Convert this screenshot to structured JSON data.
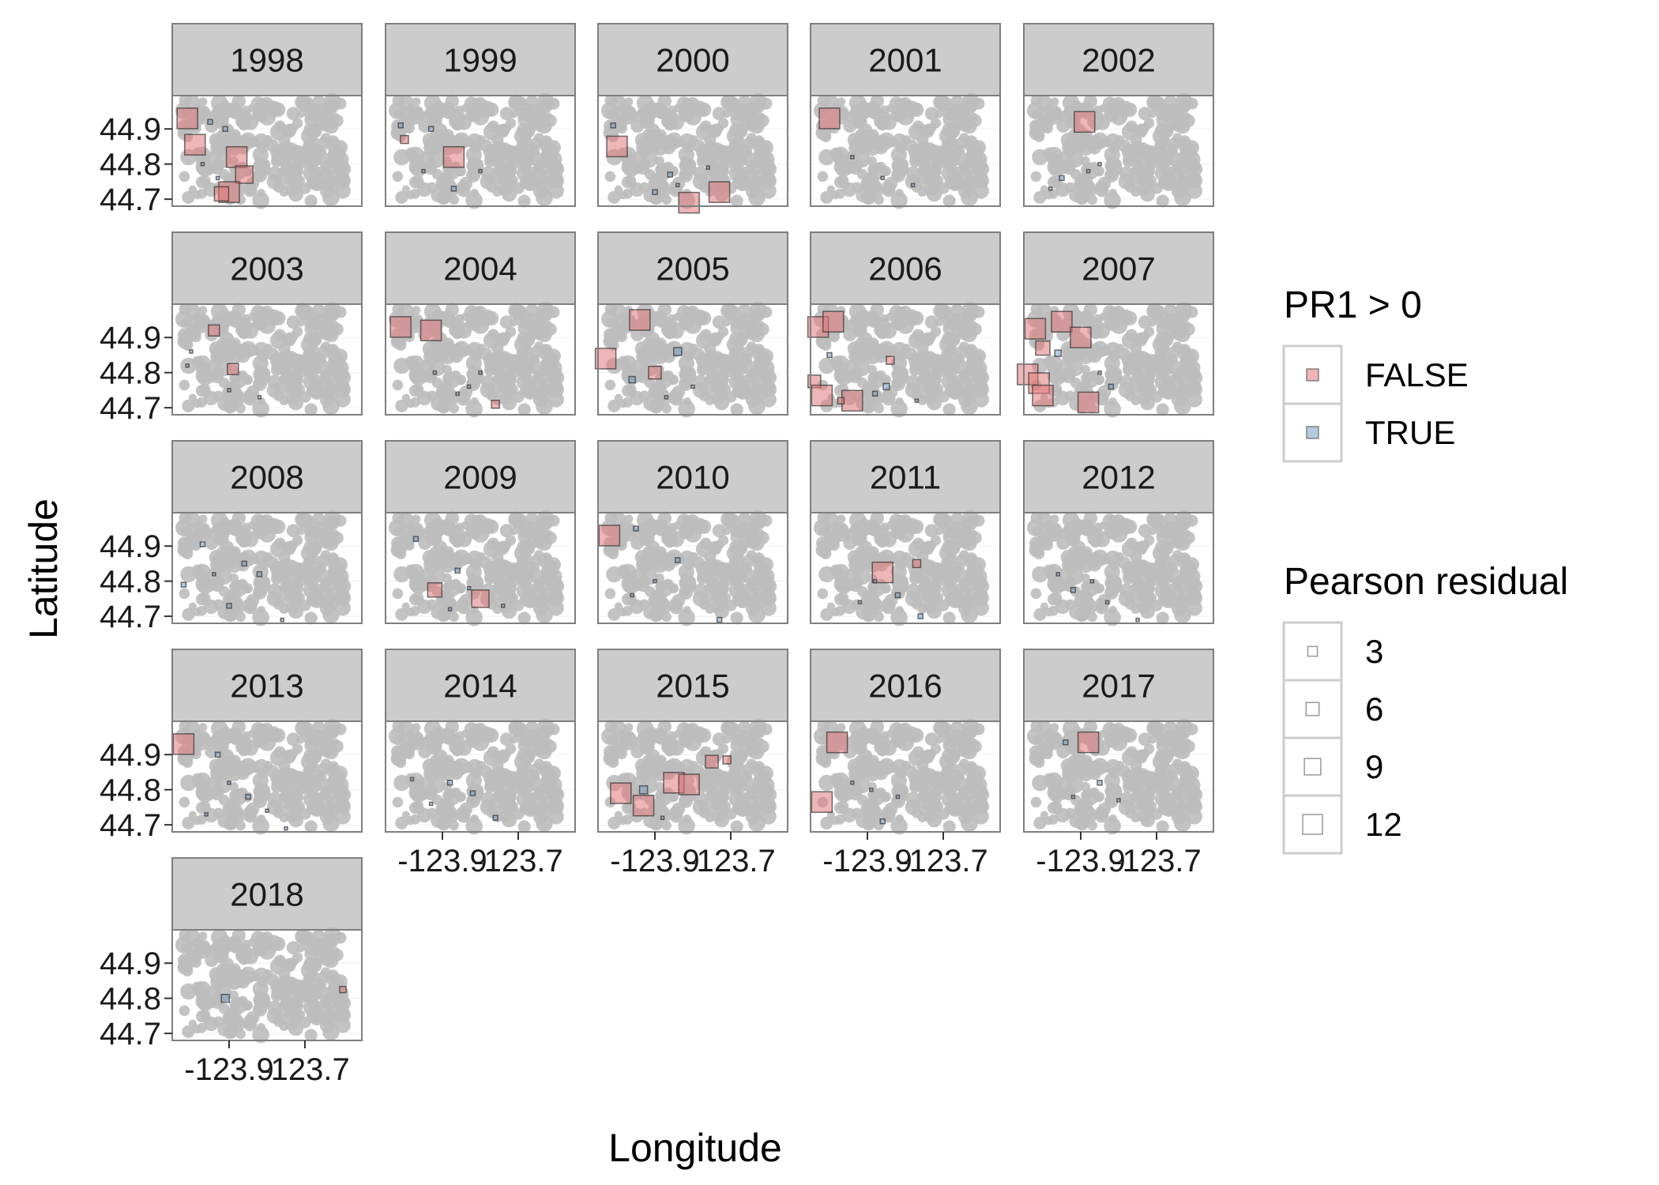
{
  "chart_data": {
    "type": "scatter",
    "facet_variable": "year",
    "facets": [
      "1998",
      "1999",
      "2000",
      "2001",
      "2002",
      "2003",
      "2004",
      "2005",
      "2006",
      "2007",
      "2008",
      "2009",
      "2010",
      "2011",
      "2012",
      "2013",
      "2014",
      "2015",
      "2016",
      "2017",
      "2018"
    ],
    "ncol": 5,
    "xlabel": "Longitude",
    "ylabel": "Latitude",
    "x_ticks": [
      -123.9,
      -123.7
    ],
    "x_tick_labels": [
      "-123.9",
      "-123.7"
    ],
    "y_ticks": [
      44.7,
      44.8,
      44.9
    ],
    "y_tick_labels": [
      "44.7",
      "44.8",
      "44.9"
    ],
    "xlim": [
      -124.05,
      -123.55
    ],
    "ylim": [
      44.68,
      44.995
    ],
    "grid": true,
    "background_points_color": "#bdbdbd",
    "legends": {
      "fill": {
        "title": "PR1 > 0",
        "entries": [
          {
            "label": "FALSE",
            "color": "#e07a7a"
          },
          {
            "label": "TRUE",
            "color": "#7a9fc4"
          }
        ]
      },
      "size": {
        "title": "Pearson residual",
        "entries": [
          {
            "label": "3",
            "value": 3
          },
          {
            "label": "6",
            "value": 6
          },
          {
            "label": "9",
            "value": 9
          },
          {
            "label": "12",
            "value": 12
          }
        ]
      },
      "placement": "right"
    },
    "points": {
      "1998": [
        {
          "x": -124.01,
          "y": 44.93,
          "r": 13,
          "pos": false
        },
        {
          "x": -123.99,
          "y": 44.855,
          "r": 13,
          "pos": false
        },
        {
          "x": -123.88,
          "y": 44.82,
          "r": 13,
          "pos": false
        },
        {
          "x": -123.86,
          "y": 44.77,
          "r": 11,
          "pos": false
        },
        {
          "x": -123.9,
          "y": 44.72,
          "r": 13,
          "pos": false
        },
        {
          "x": -123.92,
          "y": 44.715,
          "r": 9,
          "pos": false
        },
        {
          "x": -123.95,
          "y": 44.92,
          "r": 3,
          "pos": true
        },
        {
          "x": -123.91,
          "y": 44.9,
          "r": 3,
          "pos": true
        },
        {
          "x": -123.97,
          "y": 44.8,
          "r": 2,
          "pos": true
        },
        {
          "x": -123.93,
          "y": 44.76,
          "r": 2,
          "pos": true
        }
      ],
      "1999": [
        {
          "x": -123.87,
          "y": 44.82,
          "r": 13,
          "pos": false
        },
        {
          "x": -124.0,
          "y": 44.87,
          "r": 5,
          "pos": false
        },
        {
          "x": -124.01,
          "y": 44.91,
          "r": 3,
          "pos": true
        },
        {
          "x": -123.93,
          "y": 44.9,
          "r": 3,
          "pos": true
        },
        {
          "x": -123.95,
          "y": 44.78,
          "r": 2,
          "pos": true
        },
        {
          "x": -123.87,
          "y": 44.73,
          "r": 3,
          "pos": true
        },
        {
          "x": -123.8,
          "y": 44.78,
          "r": 2,
          "pos": true
        }
      ],
      "2000": [
        {
          "x": -124.0,
          "y": 44.85,
          "r": 13,
          "pos": false
        },
        {
          "x": -123.81,
          "y": 44.69,
          "r": 13,
          "pos": false
        },
        {
          "x": -123.73,
          "y": 44.72,
          "r": 13,
          "pos": false
        },
        {
          "x": -124.01,
          "y": 44.91,
          "r": 3,
          "pos": true
        },
        {
          "x": -123.86,
          "y": 44.77,
          "r": 3,
          "pos": true
        },
        {
          "x": -123.9,
          "y": 44.72,
          "r": 3,
          "pos": true
        },
        {
          "x": -123.84,
          "y": 44.74,
          "r": 2,
          "pos": true
        },
        {
          "x": -123.76,
          "y": 44.79,
          "r": 2,
          "pos": true
        }
      ],
      "2001": [
        {
          "x": -124.0,
          "y": 44.93,
          "r": 13,
          "pos": false
        },
        {
          "x": -123.94,
          "y": 44.82,
          "r": 2,
          "pos": true
        },
        {
          "x": -123.86,
          "y": 44.76,
          "r": 2,
          "pos": true
        },
        {
          "x": -123.78,
          "y": 44.74,
          "r": 2,
          "pos": true
        }
      ],
      "2002": [
        {
          "x": -123.89,
          "y": 44.92,
          "r": 13,
          "pos": false
        },
        {
          "x": -123.95,
          "y": 44.76,
          "r": 3,
          "pos": true
        },
        {
          "x": -123.88,
          "y": 44.78,
          "r": 2,
          "pos": true
        },
        {
          "x": -123.85,
          "y": 44.8,
          "r": 2,
          "pos": true
        },
        {
          "x": -123.98,
          "y": 44.73,
          "r": 2,
          "pos": true
        }
      ],
      "2003": [
        {
          "x": -123.94,
          "y": 44.92,
          "r": 7,
          "pos": false
        },
        {
          "x": -123.89,
          "y": 44.81,
          "r": 7,
          "pos": false
        },
        {
          "x": -124.01,
          "y": 44.82,
          "r": 2,
          "pos": true
        },
        {
          "x": -124.0,
          "y": 44.86,
          "r": 2,
          "pos": true
        },
        {
          "x": -123.9,
          "y": 44.75,
          "r": 2,
          "pos": true
        },
        {
          "x": -123.82,
          "y": 44.73,
          "r": 2,
          "pos": true
        }
      ],
      "2004": [
        {
          "x": -124.01,
          "y": 44.93,
          "r": 13,
          "pos": false
        },
        {
          "x": -123.93,
          "y": 44.92,
          "r": 13,
          "pos": false
        },
        {
          "x": -123.76,
          "y": 44.71,
          "r": 5,
          "pos": false
        },
        {
          "x": -123.83,
          "y": 44.76,
          "r": 2,
          "pos": true
        },
        {
          "x": -123.8,
          "y": 44.8,
          "r": 2,
          "pos": true
        },
        {
          "x": -123.86,
          "y": 44.74,
          "r": 2,
          "pos": true
        },
        {
          "x": -123.92,
          "y": 44.8,
          "r": 2,
          "pos": true
        }
      ],
      "2005": [
        {
          "x": -124.03,
          "y": 44.84,
          "r": 13,
          "pos": false
        },
        {
          "x": -123.94,
          "y": 44.95,
          "r": 13,
          "pos": false
        },
        {
          "x": -123.9,
          "y": 44.8,
          "r": 8,
          "pos": false
        },
        {
          "x": -123.84,
          "y": 44.86,
          "r": 5,
          "pos": true
        },
        {
          "x": -123.96,
          "y": 44.78,
          "r": 4,
          "pos": true
        },
        {
          "x": -123.8,
          "y": 44.76,
          "r": 2,
          "pos": true
        },
        {
          "x": -123.87,
          "y": 44.73,
          "r": 2,
          "pos": true
        }
      ],
      "2006": [
        {
          "x": -124.03,
          "y": 44.93,
          "r": 13,
          "pos": false
        },
        {
          "x": -123.99,
          "y": 44.945,
          "r": 13,
          "pos": false
        },
        {
          "x": -124.04,
          "y": 44.775,
          "r": 8,
          "pos": false
        },
        {
          "x": -124.02,
          "y": 44.735,
          "r": 13,
          "pos": false
        },
        {
          "x": -123.94,
          "y": 44.72,
          "r": 13,
          "pos": false
        },
        {
          "x": -123.84,
          "y": 44.835,
          "r": 5,
          "pos": false
        },
        {
          "x": -123.97,
          "y": 44.72,
          "r": 4,
          "pos": false
        },
        {
          "x": -123.85,
          "y": 44.76,
          "r": 4,
          "pos": true
        },
        {
          "x": -123.88,
          "y": 44.74,
          "r": 3,
          "pos": true
        },
        {
          "x": -124.0,
          "y": 44.85,
          "r": 3,
          "pos": true
        },
        {
          "x": -123.77,
          "y": 44.72,
          "r": 2,
          "pos": true
        }
      ],
      "2007": [
        {
          "x": -124.02,
          "y": 44.925,
          "r": 13,
          "pos": false
        },
        {
          "x": -123.95,
          "y": 44.945,
          "r": 13,
          "pos": false
        },
        {
          "x": -123.9,
          "y": 44.9,
          "r": 13,
          "pos": false
        },
        {
          "x": -124.0,
          "y": 44.87,
          "r": 9,
          "pos": false
        },
        {
          "x": -124.04,
          "y": 44.795,
          "r": 13,
          "pos": false
        },
        {
          "x": -124.01,
          "y": 44.77,
          "r": 13,
          "pos": false
        },
        {
          "x": -124.0,
          "y": 44.735,
          "r": 13,
          "pos": false
        },
        {
          "x": -123.88,
          "y": 44.715,
          "r": 13,
          "pos": false
        },
        {
          "x": -123.96,
          "y": 44.855,
          "r": 4,
          "pos": true
        },
        {
          "x": -123.82,
          "y": 44.76,
          "r": 3,
          "pos": true
        },
        {
          "x": -123.85,
          "y": 44.8,
          "r": 2,
          "pos": true
        }
      ],
      "2008": [
        {
          "x": -123.97,
          "y": 44.905,
          "r": 3,
          "pos": true
        },
        {
          "x": -124.02,
          "y": 44.79,
          "r": 3,
          "pos": true
        },
        {
          "x": -123.86,
          "y": 44.85,
          "r": 3,
          "pos": true
        },
        {
          "x": -123.82,
          "y": 44.82,
          "r": 3,
          "pos": true
        },
        {
          "x": -123.9,
          "y": 44.73,
          "r": 3,
          "pos": true
        },
        {
          "x": -123.94,
          "y": 44.82,
          "r": 2,
          "pos": true
        },
        {
          "x": -123.76,
          "y": 44.69,
          "r": 2,
          "pos": true
        }
      ],
      "2009": [
        {
          "x": -123.92,
          "y": 44.775,
          "r": 9,
          "pos": false
        },
        {
          "x": -123.8,
          "y": 44.75,
          "r": 11,
          "pos": false
        },
        {
          "x": -123.97,
          "y": 44.92,
          "r": 3,
          "pos": true
        },
        {
          "x": -123.86,
          "y": 44.83,
          "r": 3,
          "pos": true
        },
        {
          "x": -123.83,
          "y": 44.78,
          "r": 2,
          "pos": true
        },
        {
          "x": -123.88,
          "y": 44.72,
          "r": 2,
          "pos": true
        },
        {
          "x": -123.74,
          "y": 44.73,
          "r": 2,
          "pos": true
        }
      ],
      "2010": [
        {
          "x": -124.02,
          "y": 44.93,
          "r": 13,
          "pos": false
        },
        {
          "x": -123.95,
          "y": 44.95,
          "r": 3,
          "pos": true
        },
        {
          "x": -123.84,
          "y": 44.86,
          "r": 3,
          "pos": true
        },
        {
          "x": -123.9,
          "y": 44.8,
          "r": 2,
          "pos": true
        },
        {
          "x": -123.96,
          "y": 44.76,
          "r": 2,
          "pos": true
        },
        {
          "x": -123.73,
          "y": 44.69,
          "r": 3,
          "pos": true
        }
      ],
      "2011": [
        {
          "x": -123.86,
          "y": 44.825,
          "r": 13,
          "pos": false
        },
        {
          "x": -123.77,
          "y": 44.85,
          "r": 5,
          "pos": false
        },
        {
          "x": -123.82,
          "y": 44.76,
          "r": 3,
          "pos": true
        },
        {
          "x": -123.88,
          "y": 44.8,
          "r": 2,
          "pos": true
        },
        {
          "x": -123.92,
          "y": 44.74,
          "r": 2,
          "pos": true
        },
        {
          "x": -123.76,
          "y": 44.7,
          "r": 3,
          "pos": true
        }
      ],
      "2012": [
        {
          "x": -123.92,
          "y": 44.775,
          "r": 3,
          "pos": true
        },
        {
          "x": -123.87,
          "y": 44.8,
          "r": 2,
          "pos": true
        },
        {
          "x": -123.83,
          "y": 44.74,
          "r": 2,
          "pos": true
        },
        {
          "x": -123.96,
          "y": 44.82,
          "r": 2,
          "pos": true
        },
        {
          "x": -123.75,
          "y": 44.69,
          "r": 2,
          "pos": true
        }
      ],
      "2013": [
        {
          "x": -124.02,
          "y": 44.93,
          "r": 13,
          "pos": false
        },
        {
          "x": -123.93,
          "y": 44.9,
          "r": 3,
          "pos": true
        },
        {
          "x": -123.85,
          "y": 44.78,
          "r": 3,
          "pos": true
        },
        {
          "x": -123.9,
          "y": 44.82,
          "r": 2,
          "pos": true
        },
        {
          "x": -123.96,
          "y": 44.73,
          "r": 2,
          "pos": true
        },
        {
          "x": -123.8,
          "y": 44.74,
          "r": 2,
          "pos": true
        },
        {
          "x": -123.75,
          "y": 44.69,
          "r": 2,
          "pos": true
        }
      ],
      "2014": [
        {
          "x": -123.88,
          "y": 44.82,
          "r": 3,
          "pos": true
        },
        {
          "x": -123.82,
          "y": 44.79,
          "r": 3,
          "pos": true
        },
        {
          "x": -123.93,
          "y": 44.76,
          "r": 2,
          "pos": true
        },
        {
          "x": -123.76,
          "y": 44.72,
          "r": 3,
          "pos": true
        },
        {
          "x": -123.98,
          "y": 44.83,
          "r": 2,
          "pos": true
        }
      ],
      "2015": [
        {
          "x": -123.99,
          "y": 44.79,
          "r": 13,
          "pos": false
        },
        {
          "x": -123.93,
          "y": 44.755,
          "r": 13,
          "pos": false
        },
        {
          "x": -123.85,
          "y": 44.82,
          "r": 13,
          "pos": false
        },
        {
          "x": -123.81,
          "y": 44.815,
          "r": 13,
          "pos": false
        },
        {
          "x": -123.75,
          "y": 44.88,
          "r": 8,
          "pos": false
        },
        {
          "x": -123.71,
          "y": 44.885,
          "r": 5,
          "pos": false
        },
        {
          "x": -123.93,
          "y": 44.8,
          "r": 5,
          "pos": true
        },
        {
          "x": -123.88,
          "y": 44.72,
          "r": 2,
          "pos": true
        }
      ],
      "2016": [
        {
          "x": -123.98,
          "y": 44.935,
          "r": 13,
          "pos": false
        },
        {
          "x": -124.02,
          "y": 44.765,
          "r": 13,
          "pos": false
        },
        {
          "x": -123.89,
          "y": 44.8,
          "r": 2,
          "pos": true
        },
        {
          "x": -123.82,
          "y": 44.78,
          "r": 2,
          "pos": true
        },
        {
          "x": -123.86,
          "y": 44.71,
          "r": 3,
          "pos": true
        },
        {
          "x": -123.94,
          "y": 44.82,
          "r": 2,
          "pos": true
        }
      ],
      "2017": [
        {
          "x": -123.88,
          "y": 44.935,
          "r": 13,
          "pos": false
        },
        {
          "x": -123.94,
          "y": 44.935,
          "r": 3,
          "pos": true
        },
        {
          "x": -123.85,
          "y": 44.82,
          "r": 3,
          "pos": true
        },
        {
          "x": -123.8,
          "y": 44.77,
          "r": 2,
          "pos": true
        },
        {
          "x": -123.92,
          "y": 44.78,
          "r": 2,
          "pos": true
        }
      ],
      "2018": [
        {
          "x": -123.91,
          "y": 44.8,
          "r": 5,
          "pos": true
        },
        {
          "x": -123.6,
          "y": 44.825,
          "r": 4,
          "pos": false
        }
      ]
    }
  }
}
